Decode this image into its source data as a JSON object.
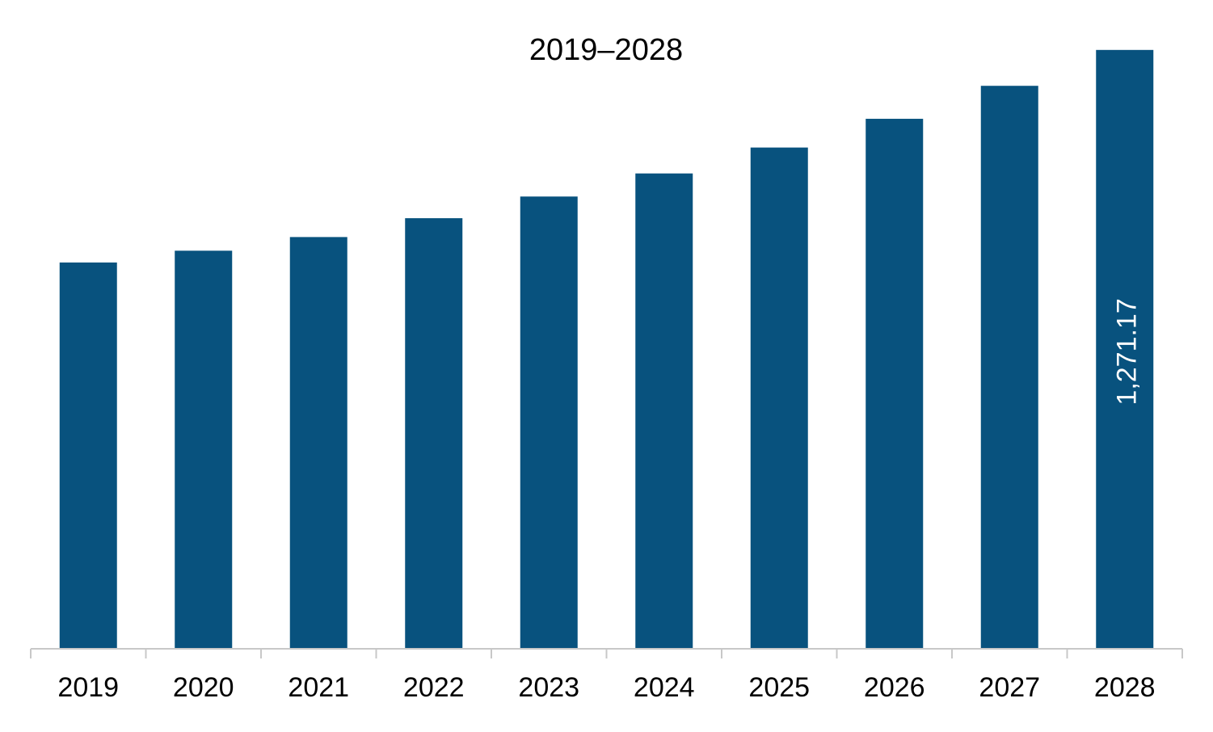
{
  "chart_data": {
    "type": "bar",
    "title": "2019–2028",
    "xlabel": "",
    "ylabel": "",
    "categories": [
      "2019",
      "2020",
      "2021",
      "2022",
      "2023",
      "2024",
      "2025",
      "2026",
      "2027",
      "2028"
    ],
    "values": [
      820,
      845,
      874,
      914,
      960,
      1009,
      1064,
      1125,
      1195,
      1271.17
    ],
    "data_labels": [
      "",
      "",
      "",
      "",
      "",
      "",
      "",
      "",
      "",
      "1,271.17"
    ],
    "ylim": [
      0,
      1300
    ],
    "grid": false,
    "legend": "none",
    "colors": {
      "bar": "#08527E",
      "axis": "#C8C8C8",
      "text": "#000000",
      "data_label": "#FFFFFF"
    }
  }
}
